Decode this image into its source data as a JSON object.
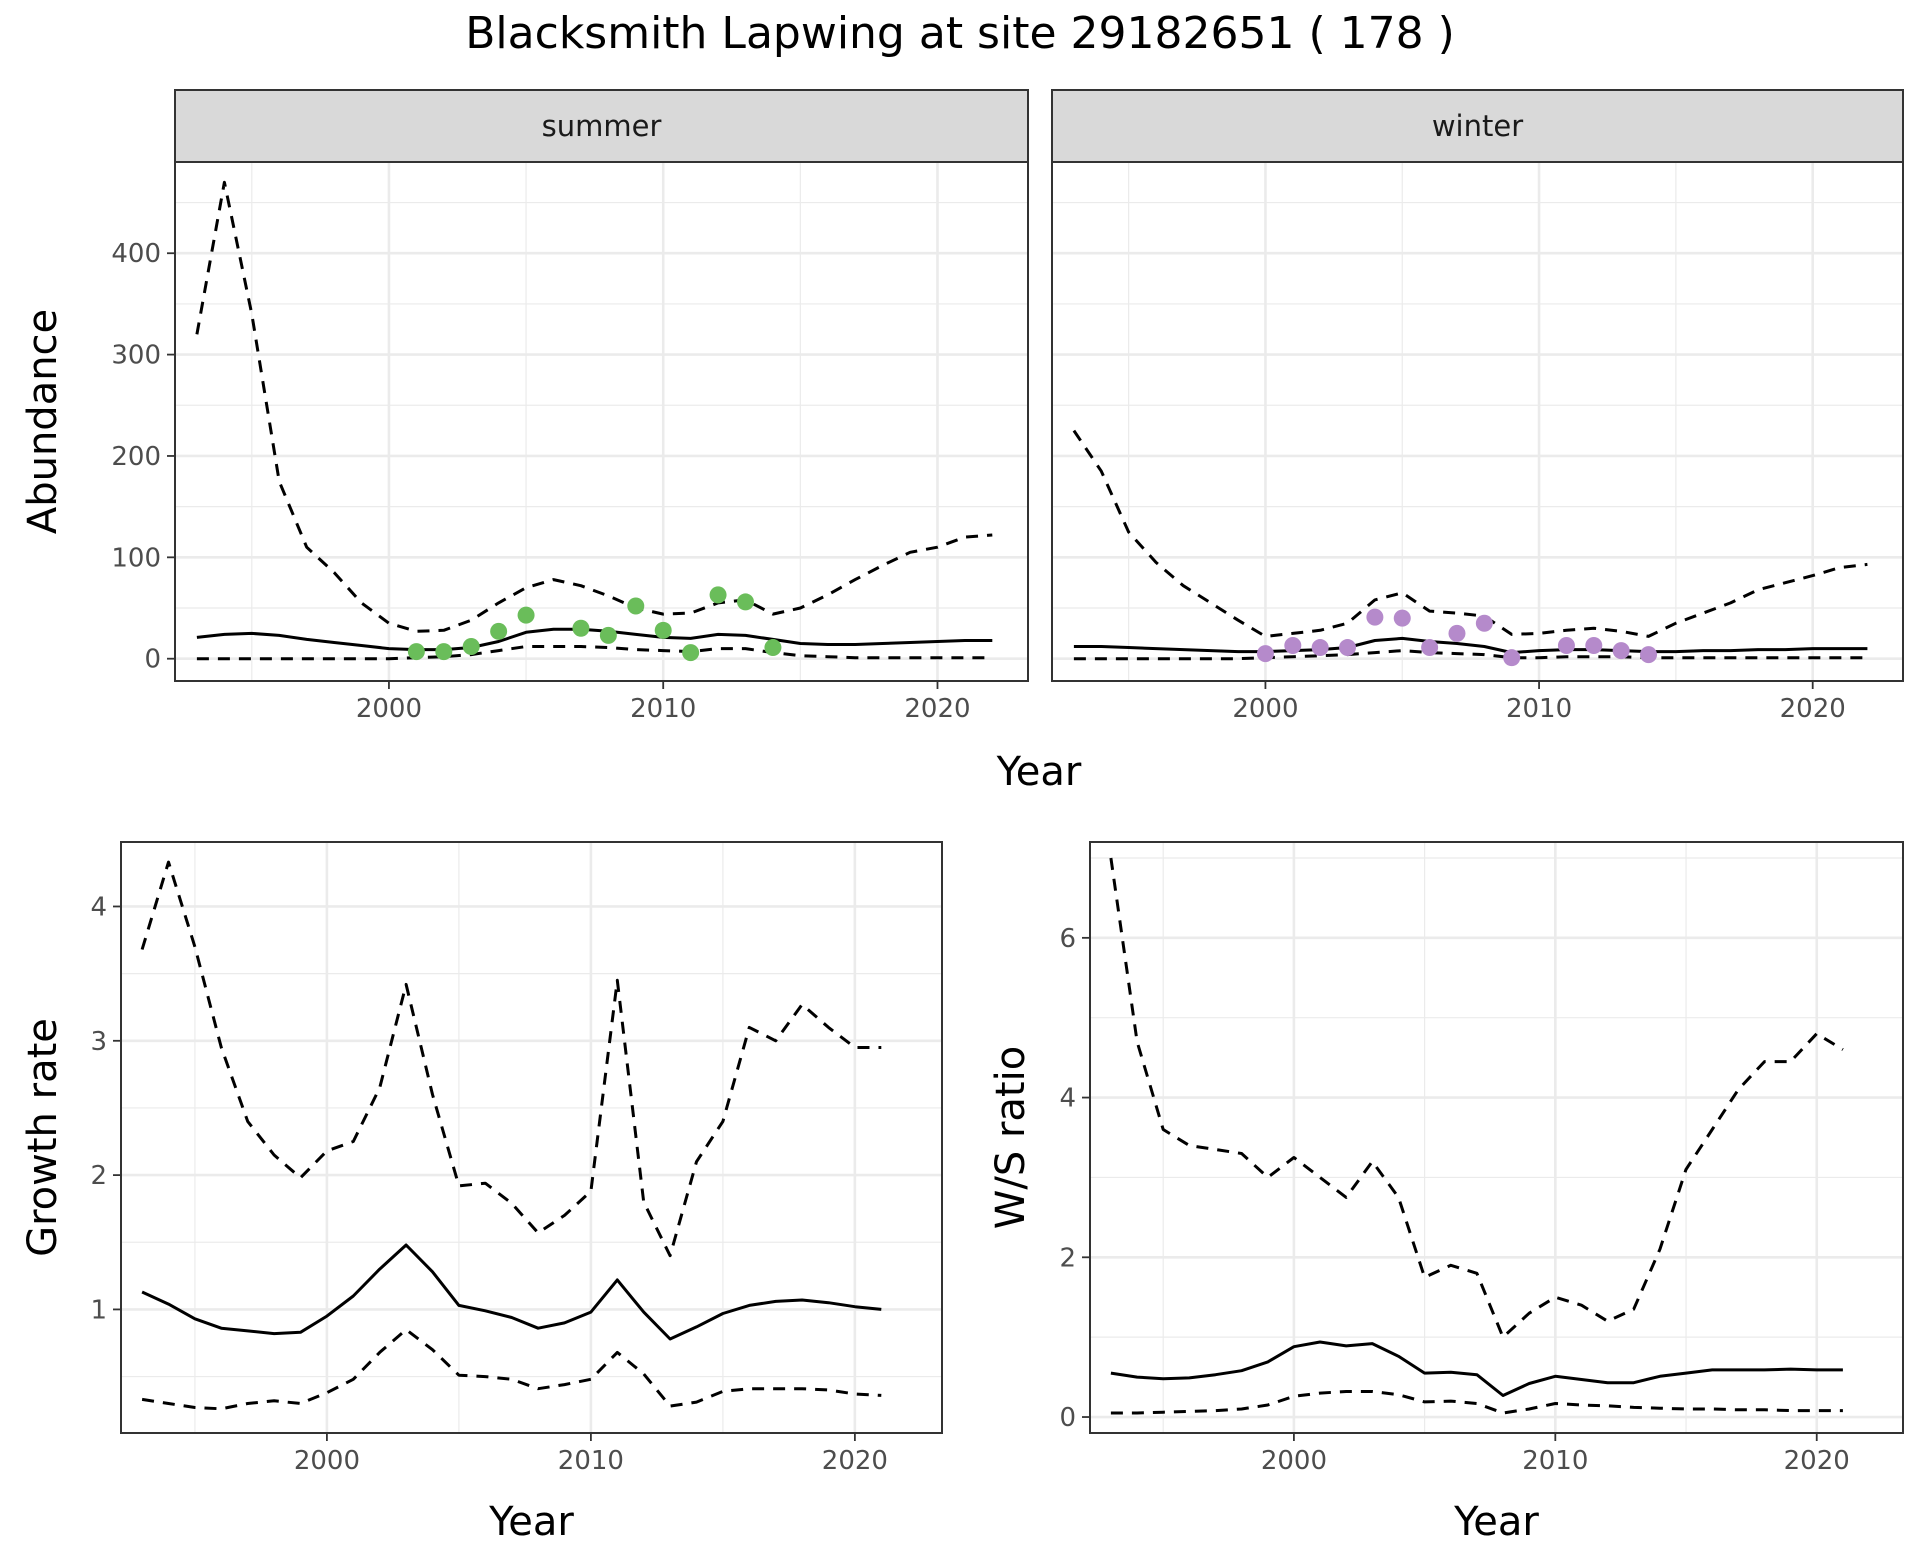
{
  "title": "Blacksmith Lapwing at site 29182651 ( 178 )",
  "colors": {
    "summer_points": "#6abd5a",
    "winter_points": "#b58acb",
    "line": "#000000",
    "strip_fill": "#d9d9d9",
    "grid": "#ebebeb"
  },
  "chart_data": [
    {
      "type": "line",
      "panel": "summer",
      "strip": "summer",
      "xlabel": "Year",
      "ylabel": "Abundance",
      "xlim": [
        1992.2,
        2023.3
      ],
      "ylim": [
        -22,
        490
      ],
      "xticks": [
        2000,
        2010,
        2020
      ],
      "yticks": [
        0,
        100,
        200,
        300,
        400
      ],
      "x": [
        1993,
        1994,
        1995,
        1996,
        1997,
        1998,
        1999,
        2000,
        2001,
        2002,
        2003,
        2004,
        2005,
        2006,
        2007,
        2008,
        2009,
        2010,
        2011,
        2012,
        2013,
        2014,
        2015,
        2016,
        2017,
        2018,
        2019,
        2020,
        2021,
        2022
      ],
      "series": [
        {
          "role": "estimate",
          "style": "solid",
          "values": [
            21,
            24,
            25,
            23,
            19,
            16,
            13,
            10,
            9,
            9,
            11,
            17,
            26,
            29,
            29,
            27,
            24,
            21,
            20,
            24,
            23,
            19,
            15,
            14,
            14,
            15,
            16,
            17,
            18,
            18
          ]
        },
        {
          "role": "upper",
          "style": "dashed",
          "values": [
            320,
            470,
            340,
            175,
            110,
            85,
            55,
            35,
            27,
            28,
            38,
            55,
            70,
            78,
            72,
            62,
            50,
            44,
            45,
            55,
            58,
            44,
            50,
            63,
            78,
            92,
            105,
            110,
            120,
            122
          ]
        },
        {
          "role": "lower",
          "style": "dashed",
          "values": [
            0,
            0,
            0,
            0,
            0,
            0,
            0,
            0,
            1,
            2,
            4,
            8,
            12,
            12,
            12,
            11,
            9,
            8,
            7,
            10,
            10,
            6,
            3,
            2,
            1,
            1,
            1,
            1,
            1,
            1
          ]
        }
      ],
      "points": {
        "x": [
          2001,
          2002,
          2003,
          2004,
          2005,
          2007,
          2008,
          2009,
          2010,
          2011,
          2012,
          2013,
          2014
        ],
        "y": [
          7,
          7,
          12,
          27,
          43,
          30,
          23,
          52,
          28,
          6,
          63,
          56,
          11
        ]
      }
    },
    {
      "type": "line",
      "panel": "winter",
      "strip": "winter",
      "xlabel": "Year",
      "ylabel": "",
      "xlim": [
        1992.2,
        2023.3
      ],
      "ylim": [
        -22,
        490
      ],
      "xticks": [
        2000,
        2010,
        2020
      ],
      "yticks": [
        0,
        100,
        200,
        300,
        400
      ],
      "x": [
        1993,
        1994,
        1995,
        1996,
        1997,
        1998,
        1999,
        2000,
        2001,
        2002,
        2003,
        2004,
        2005,
        2006,
        2007,
        2008,
        2009,
        2010,
        2011,
        2012,
        2013,
        2014,
        2015,
        2016,
        2017,
        2018,
        2019,
        2020,
        2021,
        2022
      ],
      "series": [
        {
          "role": "estimate",
          "style": "solid",
          "values": [
            12,
            12,
            11,
            10,
            9,
            8,
            7,
            7,
            8,
            9,
            11,
            18,
            20,
            17,
            15,
            12,
            6,
            8,
            9,
            9,
            8,
            7,
            7,
            8,
            8,
            9,
            9,
            10,
            10,
            10
          ]
        },
        {
          "role": "upper",
          "style": "dashed",
          "values": [
            225,
            185,
            125,
            95,
            72,
            55,
            38,
            22,
            25,
            28,
            35,
            58,
            65,
            47,
            45,
            42,
            24,
            25,
            28,
            30,
            27,
            22,
            35,
            45,
            55,
            68,
            75,
            82,
            90,
            93
          ]
        },
        {
          "role": "lower",
          "style": "dashed",
          "values": [
            0,
            0,
            0,
            0,
            0,
            0,
            0,
            1,
            2,
            3,
            4,
            6,
            8,
            6,
            5,
            4,
            1,
            1,
            2,
            2,
            2,
            1,
            1,
            1,
            1,
            1,
            1,
            1,
            1,
            1
          ]
        }
      ],
      "points": {
        "x": [
          2000,
          2001,
          2002,
          2003,
          2004,
          2005,
          2006,
          2007,
          2008,
          2009,
          2011,
          2012,
          2013,
          2014
        ],
        "y": [
          5,
          13,
          11,
          11,
          41,
          40,
          11,
          25,
          35,
          1,
          13,
          13,
          8,
          4
        ]
      }
    },
    {
      "type": "line",
      "panel": "growth",
      "xlabel": "Year",
      "ylabel": "Growth rate",
      "xlim": [
        1992.2,
        2023.3
      ],
      "ylim": [
        0.08,
        4.48
      ],
      "xticks": [
        2000,
        2010,
        2020
      ],
      "yticks": [
        1,
        2,
        3,
        4
      ],
      "x": [
        1993,
        1994,
        1995,
        1996,
        1997,
        1998,
        1999,
        2000,
        2001,
        2002,
        2003,
        2004,
        2005,
        2006,
        2007,
        2008,
        2009,
        2010,
        2011,
        2012,
        2013,
        2014,
        2015,
        2016,
        2017,
        2018,
        2019,
        2020,
        2021
      ],
      "series": [
        {
          "role": "estimate",
          "style": "solid",
          "values": [
            1.13,
            1.04,
            0.93,
            0.86,
            0.84,
            0.82,
            0.83,
            0.95,
            1.1,
            1.3,
            1.48,
            1.28,
            1.03,
            0.99,
            0.94,
            0.86,
            0.9,
            0.98,
            1.22,
            0.98,
            0.78,
            0.87,
            0.97,
            1.03,
            1.06,
            1.07,
            1.05,
            1.02,
            1.0
          ]
        },
        {
          "role": "upper",
          "style": "dashed",
          "values": [
            3.68,
            4.33,
            3.7,
            2.95,
            2.4,
            2.15,
            1.98,
            2.18,
            2.25,
            2.65,
            3.42,
            2.6,
            1.92,
            1.94,
            1.79,
            1.57,
            1.7,
            1.88,
            3.45,
            1.8,
            1.4,
            2.1,
            2.4,
            3.1,
            3.0,
            3.27,
            3.1,
            2.95,
            2.95
          ]
        },
        {
          "role": "lower",
          "style": "dashed",
          "values": [
            0.33,
            0.3,
            0.27,
            0.26,
            0.3,
            0.32,
            0.3,
            0.38,
            0.48,
            0.68,
            0.85,
            0.7,
            0.51,
            0.5,
            0.48,
            0.41,
            0.44,
            0.48,
            0.68,
            0.52,
            0.28,
            0.31,
            0.39,
            0.41,
            0.41,
            0.41,
            0.4,
            0.37,
            0.36
          ]
        }
      ]
    },
    {
      "type": "line",
      "panel": "ratio",
      "xlabel": "Year",
      "ylabel": "W/S ratio",
      "xlim": [
        1992.2,
        2023.3
      ],
      "ylim": [
        -0.2,
        7.2
      ],
      "xticks": [
        2000,
        2010,
        2020
      ],
      "yticks": [
        0,
        2,
        4,
        6
      ],
      "x": [
        1993,
        1994,
        1995,
        1996,
        1997,
        1998,
        1999,
        2000,
        2001,
        2002,
        2003,
        2004,
        2005,
        2006,
        2007,
        2008,
        2009,
        2010,
        2011,
        2012,
        2013,
        2014,
        2015,
        2016,
        2017,
        2018,
        2019,
        2020,
        2021
      ],
      "series": [
        {
          "role": "estimate",
          "style": "solid",
          "values": [
            0.55,
            0.5,
            0.48,
            0.49,
            0.53,
            0.58,
            0.69,
            0.88,
            0.94,
            0.89,
            0.92,
            0.76,
            0.55,
            0.56,
            0.53,
            0.27,
            0.42,
            0.51,
            0.47,
            0.43,
            0.43,
            0.51,
            0.55,
            0.59,
            0.59,
            0.59,
            0.6,
            0.59,
            0.59
          ]
        },
        {
          "role": "upper",
          "style": "dashed",
          "values": [
            7.0,
            4.7,
            3.6,
            3.4,
            3.35,
            3.3,
            3.0,
            3.25,
            3.0,
            2.75,
            3.2,
            2.75,
            1.75,
            1.9,
            1.8,
            1.0,
            1.3,
            1.5,
            1.4,
            1.2,
            1.35,
            2.1,
            3.1,
            3.6,
            4.1,
            4.45,
            4.45,
            4.8,
            4.6
          ]
        },
        {
          "role": "lower",
          "style": "dashed",
          "values": [
            0.05,
            0.05,
            0.06,
            0.07,
            0.08,
            0.1,
            0.15,
            0.26,
            0.3,
            0.32,
            0.32,
            0.28,
            0.19,
            0.2,
            0.17,
            0.05,
            0.1,
            0.17,
            0.15,
            0.14,
            0.12,
            0.11,
            0.1,
            0.1,
            0.09,
            0.09,
            0.08,
            0.08,
            0.08
          ]
        }
      ]
    }
  ]
}
